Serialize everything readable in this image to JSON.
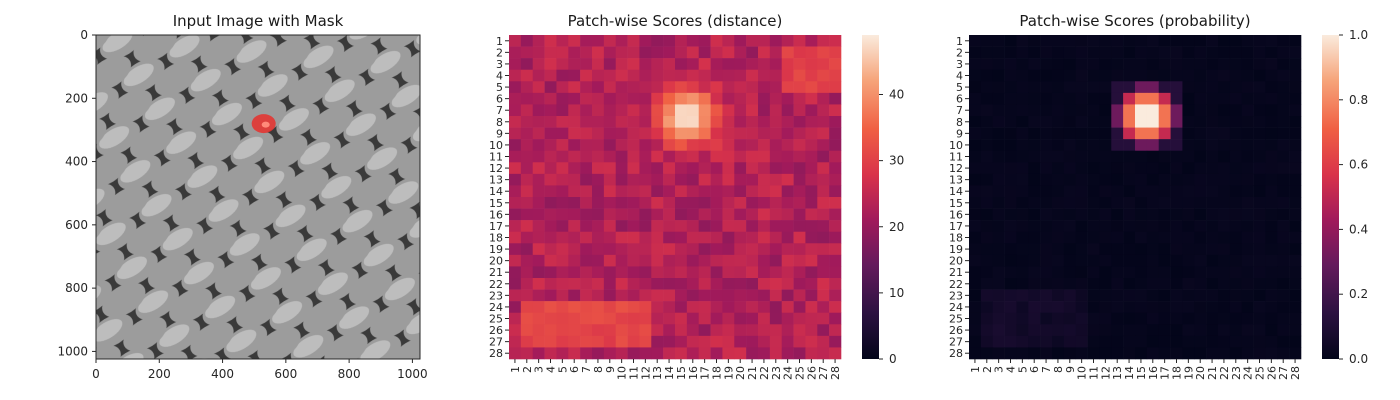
{
  "colors": {
    "rocket": [
      "#03051a",
      "#2b1140",
      "#641a5c",
      "#a11a5b",
      "#d9334a",
      "#f06043",
      "#f6a47a",
      "#faebdd"
    ],
    "mask": "#e8302d",
    "fabric_light": "#a9a9a9",
    "fabric_dark": "#3a3a3a"
  },
  "chart_data": [
    {
      "type": "image",
      "title": "Input Image with Mask",
      "xlim": [
        0,
        1024
      ],
      "ylim": [
        1024,
        0
      ],
      "xticks": [
        "0",
        "200",
        "400",
        "600",
        "800",
        "1000"
      ],
      "yticks": [
        "0",
        "200",
        "400",
        "600",
        "800",
        "1000"
      ],
      "mask_region": {
        "center_x": 530,
        "center_y": 280,
        "radius_x": 38,
        "radius_y": 30
      }
    },
    {
      "type": "heatmap",
      "title": "Patch-wise Scores (distance)",
      "rows": 28,
      "cols": 28,
      "row_labels": [
        "1",
        "2",
        "3",
        "4",
        "5",
        "6",
        "7",
        "8",
        "9",
        "10",
        "11",
        "12",
        "13",
        "14",
        "15",
        "16",
        "17",
        "18",
        "19",
        "20",
        "21",
        "22",
        "23",
        "24",
        "25",
        "26",
        "27",
        "28"
      ],
      "col_labels": [
        "1",
        "2",
        "3",
        "4",
        "5",
        "6",
        "7",
        "8",
        "9",
        "10",
        "11",
        "12",
        "13",
        "14",
        "15",
        "16",
        "17",
        "18",
        "19",
        "20",
        "21",
        "22",
        "23",
        "24",
        "25",
        "26",
        "27",
        "28"
      ],
      "colorbar": {
        "min": 0,
        "max": 49,
        "ticks": [
          "0",
          "10",
          "20",
          "30",
          "40"
        ]
      },
      "base_value": 23,
      "hotspot": {
        "row": 7.5,
        "col": 15.5,
        "peak": 49,
        "sigma": 1.7
      },
      "elevated_band": {
        "rows": [
          24,
          27
        ],
        "cols": [
          2,
          12
        ],
        "value": 31
      },
      "top_right_region": {
        "rows": [
          2,
          5
        ],
        "cols": [
          24,
          28
        ],
        "value": 30
      }
    },
    {
      "type": "heatmap",
      "title": "Patch-wise Scores (probability)",
      "rows": 28,
      "cols": 28,
      "row_labels": [
        "1",
        "2",
        "3",
        "4",
        "5",
        "6",
        "7",
        "8",
        "9",
        "10",
        "11",
        "12",
        "13",
        "14",
        "15",
        "16",
        "17",
        "18",
        "19",
        "20",
        "21",
        "22",
        "23",
        "24",
        "25",
        "26",
        "27",
        "28"
      ],
      "col_labels": [
        "1",
        "2",
        "3",
        "4",
        "5",
        "6",
        "7",
        "8",
        "9",
        "10",
        "11",
        "12",
        "13",
        "14",
        "15",
        "16",
        "17",
        "18",
        "19",
        "20",
        "21",
        "22",
        "23",
        "24",
        "25",
        "26",
        "27",
        "28"
      ],
      "colorbar": {
        "min": 0,
        "max": 1,
        "ticks": [
          "0.0",
          "0.2",
          "0.4",
          "0.6",
          "0.8",
          "1.0"
        ]
      },
      "base_value": 0.02,
      "hotspot": {
        "row": 7.5,
        "col": 15.5,
        "peak": 1.0,
        "rows": [
          5,
          10
        ],
        "cols": [
          13,
          18
        ]
      },
      "elevated_band": {
        "rows": [
          23,
          27
        ],
        "cols": [
          2,
          10
        ],
        "value": 0.08
      }
    }
  ]
}
